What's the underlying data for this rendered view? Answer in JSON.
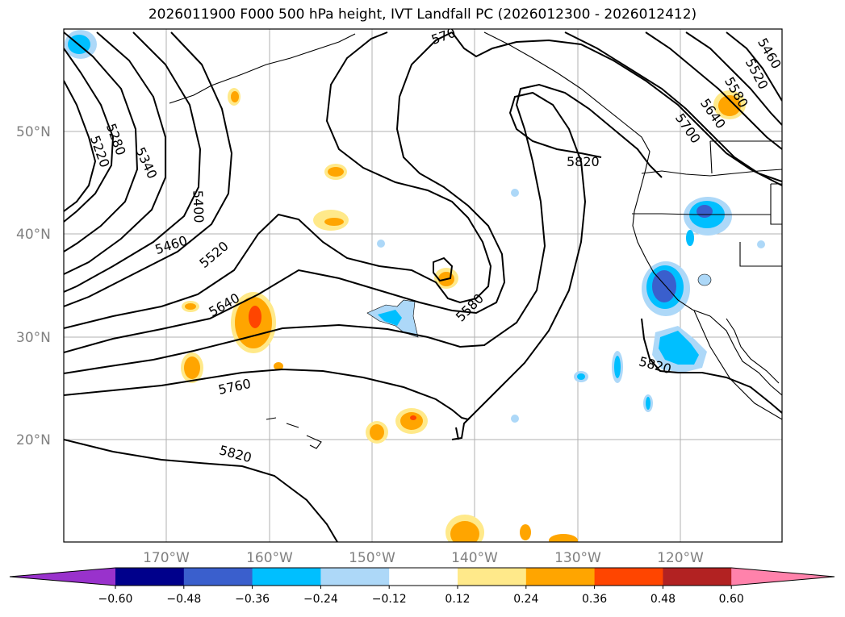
{
  "title": "2026011900 F000 500 hPa height, IVT Landfall PC (2026012300 - 2026012412)",
  "lat_labels": [
    "50°N",
    "40°N",
    "30°N",
    "20°N"
  ],
  "lon_labels": [
    "170°W",
    "160°W",
    "150°W",
    "140°W",
    "130°W",
    "120°W"
  ],
  "contour_labels": [
    "5220",
    "5280",
    "5340",
    "5400",
    "5460",
    "5520",
    "5640",
    "5760",
    "5820",
    "5580",
    "5820",
    "5700",
    "5640",
    "5580",
    "5520",
    "5460",
    "5820",
    "570"
  ],
  "colorbar": {
    "ticks": [
      "−0.60",
      "−0.48",
      "−0.36",
      "−0.24",
      "−0.12",
      "0.12",
      "0.24",
      "0.36",
      "0.48",
      "0.60"
    ],
    "colors": [
      "#9932cc",
      "#00008b",
      "#3a5fcd",
      "#00bfff",
      "#add8f8",
      "#ffffff",
      "#ffe98a",
      "#ffa500",
      "#ff4500",
      "#b22222",
      "#ff82ab"
    ]
  }
}
